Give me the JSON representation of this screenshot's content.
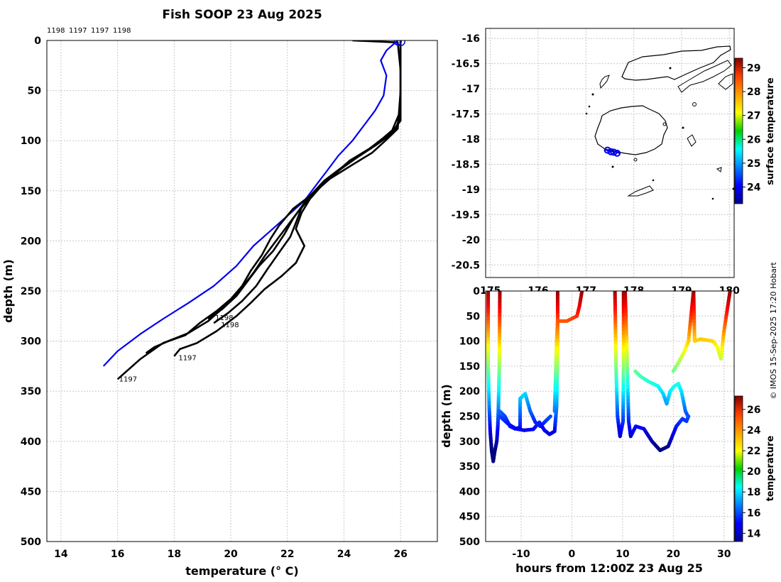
{
  "title": "Fish SOOP 23 Aug 2025",
  "credit": "© IMOS 15-Sep-2025 17:20 Hobart",
  "chart_data": [
    {
      "id": "profiles",
      "type": "line",
      "xlabel": "temperature (° C)",
      "ylabel": "depth (m)",
      "xlim": [
        13.5,
        27.3
      ],
      "ylim": [
        500,
        0
      ],
      "xticks": [
        14,
        16,
        18,
        20,
        22,
        24,
        26
      ],
      "yticks": [
        0,
        50,
        100,
        150,
        200,
        250,
        300,
        350,
        400,
        450,
        500
      ],
      "grid": true,
      "top_labels": [
        "1198",
        "1197",
        "1197",
        "1198"
      ],
      "profile_labels": [
        {
          "text": "1198",
          "t": 19.4,
          "d": 277
        },
        {
          "text": "1198",
          "t": 19.6,
          "d": 284
        },
        {
          "text": "1197",
          "t": 18.1,
          "d": 317
        },
        {
          "text": "1197",
          "t": 16.0,
          "d": 338
        }
      ],
      "series": [
        {
          "name": "climatology",
          "color": "#0000ee",
          "points": [
            [
              25.9,
              0
            ],
            [
              25.5,
              10
            ],
            [
              25.3,
              20
            ],
            [
              25.5,
              35
            ],
            [
              25.4,
              55
            ],
            [
              25.1,
              70
            ],
            [
              24.7,
              85
            ],
            [
              24.3,
              100
            ],
            [
              23.8,
              115
            ],
            [
              23.4,
              130
            ],
            [
              23.0,
              145
            ],
            [
              22.6,
              160
            ],
            [
              22.0,
              175
            ],
            [
              21.4,
              190
            ],
            [
              20.8,
              205
            ],
            [
              20.2,
              225
            ],
            [
              19.4,
              245
            ],
            [
              18.5,
              262
            ],
            [
              17.6,
              278
            ],
            [
              16.8,
              293
            ],
            [
              16.0,
              310
            ],
            [
              15.5,
              325
            ]
          ]
        },
        {
          "name": "profile-1",
          "color": "#000000",
          "points": [
            [
              24.3,
              0
            ],
            [
              25.9,
              2
            ],
            [
              26.0,
              30
            ],
            [
              26.0,
              75
            ],
            [
              25.8,
              90
            ],
            [
              25.3,
              100
            ],
            [
              24.8,
              110
            ],
            [
              24.0,
              125
            ],
            [
              23.3,
              140
            ],
            [
              22.8,
              155
            ],
            [
              22.4,
              170
            ],
            [
              22.0,
              185
            ],
            [
              21.6,
              200
            ],
            [
              21.2,
              215
            ],
            [
              20.8,
              232
            ],
            [
              20.3,
              250
            ],
            [
              19.8,
              265
            ],
            [
              19.2,
              280
            ],
            [
              18.5,
              292
            ],
            [
              17.6,
              302
            ],
            [
              16.8,
              318
            ],
            [
              16.0,
              338
            ]
          ]
        },
        {
          "name": "profile-2",
          "color": "#000000",
          "points": [
            [
              26.0,
              0
            ],
            [
              26.0,
              40
            ],
            [
              26.0,
              80
            ],
            [
              25.6,
              95
            ],
            [
              25.1,
              105
            ],
            [
              24.4,
              118
            ],
            [
              23.7,
              132
            ],
            [
              23.1,
              148
            ],
            [
              22.6,
              162
            ],
            [
              22.2,
              178
            ],
            [
              21.9,
              193
            ],
            [
              21.5,
              210
            ],
            [
              21.0,
              225
            ],
            [
              20.6,
              240
            ],
            [
              20.2,
              255
            ],
            [
              19.7,
              268
            ],
            [
              19.2,
              278
            ]
          ]
        },
        {
          "name": "profile-3",
          "color": "#000000",
          "points": [
            [
              26.0,
              0
            ],
            [
              26.0,
              60
            ],
            [
              25.9,
              85
            ],
            [
              25.4,
              97
            ],
            [
              24.9,
              108
            ],
            [
              24.2,
              120
            ],
            [
              23.6,
              135
            ],
            [
              23.0,
              150
            ],
            [
              22.5,
              167
            ],
            [
              22.3,
              182
            ],
            [
              22.1,
              196
            ],
            [
              21.7,
              212
            ],
            [
              21.3,
              228
            ],
            [
              20.9,
              245
            ],
            [
              20.4,
              260
            ],
            [
              19.9,
              272
            ],
            [
              19.4,
              282
            ]
          ]
        },
        {
          "name": "profile-4",
          "color": "#000000",
          "points": [
            [
              26.0,
              0
            ],
            [
              26.0,
              70
            ],
            [
              25.7,
              90
            ],
            [
              25.2,
              102
            ],
            [
              24.6,
              114
            ],
            [
              23.9,
              128
            ],
            [
              23.3,
              142
            ],
            [
              22.8,
              158
            ],
            [
              22.5,
              172
            ],
            [
              22.3,
              188
            ],
            [
              22.6,
              205
            ],
            [
              22.3,
              222
            ],
            [
              21.8,
              235
            ],
            [
              21.2,
              248
            ],
            [
              20.7,
              262
            ],
            [
              20.2,
              275
            ],
            [
              19.5,
              290
            ],
            [
              18.8,
              302
            ],
            [
              18.2,
              308
            ],
            [
              18.0,
              315
            ]
          ]
        },
        {
          "name": "profile-5",
          "color": "#000000",
          "points": [
            [
              26.0,
              0
            ],
            [
              26.0,
              50
            ],
            [
              25.9,
              88
            ],
            [
              25.5,
              99
            ],
            [
              25.0,
              112
            ],
            [
              24.3,
              124
            ],
            [
              23.5,
              138
            ],
            [
              22.9,
              153
            ],
            [
              22.2,
              168
            ],
            [
              21.7,
              185
            ],
            [
              21.4,
              198
            ],
            [
              21.1,
              214
            ],
            [
              20.7,
              230
            ],
            [
              20.4,
              245
            ],
            [
              20.0,
              258
            ],
            [
              19.5,
              270
            ],
            [
              18.9,
              282
            ],
            [
              18.4,
              294
            ],
            [
              17.8,
              300
            ],
            [
              17.3,
              306
            ],
            [
              17.0,
              312
            ]
          ]
        }
      ]
    },
    {
      "id": "track-map",
      "type": "scatter",
      "xlim": [
        174.9,
        180.1
      ],
      "ylim": [
        -20.75,
        -15.8
      ],
      "xticks": [
        175,
        176,
        177,
        178,
        179,
        180
      ],
      "yticks": [
        -16,
        -16.5,
        -17,
        -17.5,
        -18,
        -18.5,
        -19,
        -19.5,
        -20,
        -20.5
      ],
      "grid": true,
      "stations": [
        {
          "lon": 177.45,
          "lat": -18.22
        },
        {
          "lon": 177.52,
          "lat": -18.25
        },
        {
          "lon": 177.58,
          "lat": -18.26
        },
        {
          "lon": 177.65,
          "lat": -18.28
        }
      ],
      "ship_track": [
        [
          177.4,
          -18.22
        ],
        [
          177.7,
          -18.28
        ]
      ],
      "colorbar": {
        "label": "surface temperature",
        "min": 23.3,
        "max": 29.4,
        "ticks": [
          24,
          25,
          26,
          27,
          28,
          29
        ]
      }
    },
    {
      "id": "isotherm-section",
      "type": "line",
      "xlabel": "hours from 12:00Z 23 Aug 25",
      "ylabel": "depth (m)",
      "xlim": [
        -17,
        32
      ],
      "ylim": [
        500,
        0
      ],
      "xticks": [
        -10,
        0,
        10,
        20,
        30
      ],
      "yticks": [
        0,
        50,
        100,
        150,
        200,
        250,
        300,
        350,
        400,
        450,
        500
      ],
      "grid": true,
      "series": [
        {
          "name": "segment-a",
          "points": [
            [
              -16.5,
              0
            ],
            [
              -16.5,
              150
            ],
            [
              -16.3,
              230
            ],
            [
              -16.1,
              280
            ],
            [
              -15.8,
              320
            ],
            [
              -15.5,
              340
            ],
            [
              -15.2,
              320
            ],
            [
              -14.8,
              300
            ],
            [
              -14.6,
              270
            ],
            [
              -14.5,
              240
            ],
            [
              -14.3,
              150
            ],
            [
              -14.2,
              0
            ]
          ]
        },
        {
          "name": "segment-b",
          "points": [
            [
              -14.2,
              240
            ],
            [
              -13.2,
              250
            ],
            [
              -12.2,
              270
            ],
            [
              -11.2,
              275
            ],
            [
              -10.2,
              272
            ],
            [
              -10.2,
              215
            ],
            [
              -9.2,
              205
            ],
            [
              -8.2,
              240
            ],
            [
              -7.2,
              262
            ],
            [
              -6.2,
              270
            ],
            [
              -5.2,
              260
            ],
            [
              -4.2,
              250
            ]
          ]
        },
        {
          "name": "segment-c",
          "points": [
            [
              -14.2,
              250
            ],
            [
              -12.6,
              265
            ],
            [
              -11.0,
              275
            ],
            [
              -9.4,
              278
            ],
            [
              -7.6,
              276
            ],
            [
              -6.4,
              262
            ],
            [
              -5.4,
              278
            ],
            [
              -4.4,
              286
            ],
            [
              -3.4,
              280
            ],
            [
              -3.0,
              230
            ],
            [
              -2.8,
              120
            ],
            [
              -2.8,
              0
            ]
          ]
        },
        {
          "name": "segment-d",
          "points": [
            [
              -3.4,
              240
            ],
            [
              -3.0,
              100
            ],
            [
              -2.8,
              60
            ],
            [
              -1.0,
              60
            ],
            [
              0.0,
              55
            ],
            [
              1.0,
              50
            ],
            [
              1.5,
              30
            ],
            [
              2.0,
              0
            ]
          ]
        },
        {
          "name": "segment-e",
          "points": [
            [
              8.5,
              0
            ],
            [
              8.7,
              150
            ],
            [
              9.0,
              250
            ],
            [
              9.5,
              290
            ],
            [
              10.1,
              260
            ],
            [
              10.2,
              120
            ],
            [
              10.2,
              0
            ]
          ]
        },
        {
          "name": "segment-f",
          "points": [
            [
              10.5,
              0
            ],
            [
              10.8,
              100
            ],
            [
              11.2,
              260
            ],
            [
              11.6,
              290
            ],
            [
              12.6,
              270
            ],
            [
              14.2,
              275
            ],
            [
              15.8,
              300
            ],
            [
              17.4,
              318
            ],
            [
              19.0,
              310
            ],
            [
              20.6,
              270
            ],
            [
              21.8,
              255
            ],
            [
              22.6,
              260
            ],
            [
              23.0,
              250
            ]
          ]
        },
        {
          "name": "segment-g",
          "points": [
            [
              12.5,
              160
            ],
            [
              13.5,
              170
            ],
            [
              15.0,
              180
            ],
            [
              16.0,
              185
            ],
            [
              17.0,
              190
            ],
            [
              18.0,
              205
            ],
            [
              18.7,
              225
            ],
            [
              19.4,
              200
            ],
            [
              20.2,
              190
            ],
            [
              21.0,
              185
            ],
            [
              21.6,
              200
            ],
            [
              22.4,
              240
            ],
            [
              22.9,
              250
            ]
          ]
        },
        {
          "name": "segment-h",
          "points": [
            [
              20.0,
              160
            ],
            [
              21.2,
              140
            ],
            [
              22.2,
              120
            ],
            [
              23.0,
              100
            ],
            [
              24.0,
              0
            ],
            [
              24.2,
              100
            ],
            [
              25.4,
              96
            ],
            [
              26.6,
              98
            ],
            [
              27.8,
              100
            ],
            [
              28.6,
              110
            ],
            [
              29.4,
              135
            ],
            [
              30.0,
              80
            ],
            [
              30.6,
              40
            ],
            [
              31.2,
              0
            ]
          ]
        }
      ],
      "colorbar": {
        "label": "temperature",
        "min": 13.2,
        "max": 27.3,
        "ticks": [
          14,
          16,
          18,
          20,
          22,
          24,
          26
        ]
      }
    }
  ]
}
